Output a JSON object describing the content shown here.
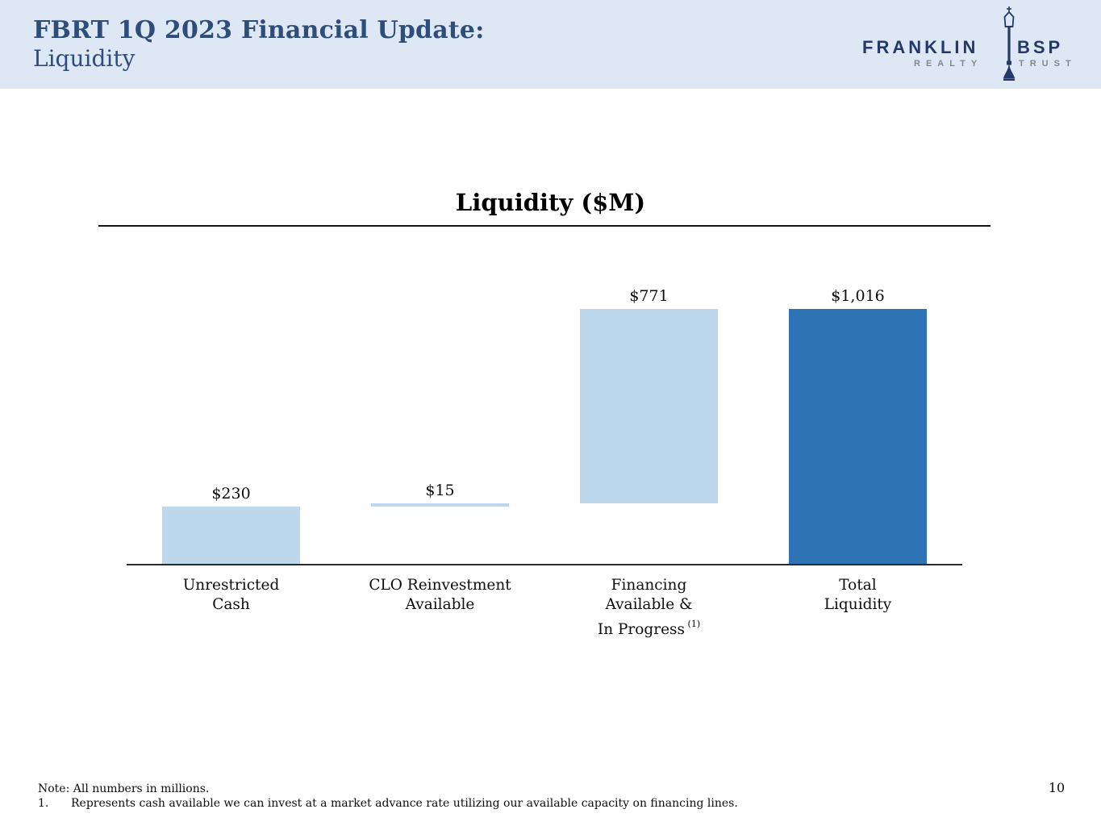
{
  "header": {
    "title_line1": "FBRT 1Q 2023 Financial Update:",
    "title_line2": "Liquidity",
    "background_color": "#dde8f4",
    "text_color": "#2e4d7b",
    "logo": {
      "brand_left": "FRANKLIN",
      "brand_right": "BSP",
      "sub_left": "REALTY",
      "sub_right": "TRUST",
      "icon": "lamp-post-icon",
      "brand_color": "#24386a",
      "sub_color": "#84878e"
    }
  },
  "chart_data": {
    "type": "bar",
    "subtype": "waterfall",
    "title": "Liquidity ($M)",
    "categories": [
      "Unrestricted Cash",
      "CLO Reinvestment Available",
      "Financing Available & In Progress (1)",
      "Total Liquidity"
    ],
    "category_lines": [
      [
        "Unrestricted",
        "Cash"
      ],
      [
        "CLO Reinvestment",
        "Available"
      ],
      [
        "Financing",
        "Available &",
        "In Progress"
      ],
      [
        "Total",
        "Liquidity"
      ]
    ],
    "category_superscripts": [
      "",
      "",
      "(1)",
      ""
    ],
    "values": [
      230,
      15,
      771,
      1016
    ],
    "bar_starts": [
      0,
      230,
      245,
      0
    ],
    "value_labels": [
      "$230",
      "$15",
      "$771",
      "$1,016"
    ],
    "bar_colors": [
      "#bdd7ec",
      "#bdd7ec",
      "#bdd7ec",
      "#2e74b5"
    ],
    "ylim": [
      0,
      1016
    ],
    "xlabel": "",
    "ylabel": "",
    "grid": false,
    "legend": false,
    "accent_light_blue": "#bdd7ec",
    "accent_dark_blue": "#2e74b5"
  },
  "footer": {
    "note": "Note: All numbers in millions.",
    "footnote_number": "1.",
    "footnote_text": "Represents cash available we can invest at a market advance rate utilizing our available capacity on financing lines.",
    "page_number": "10"
  }
}
